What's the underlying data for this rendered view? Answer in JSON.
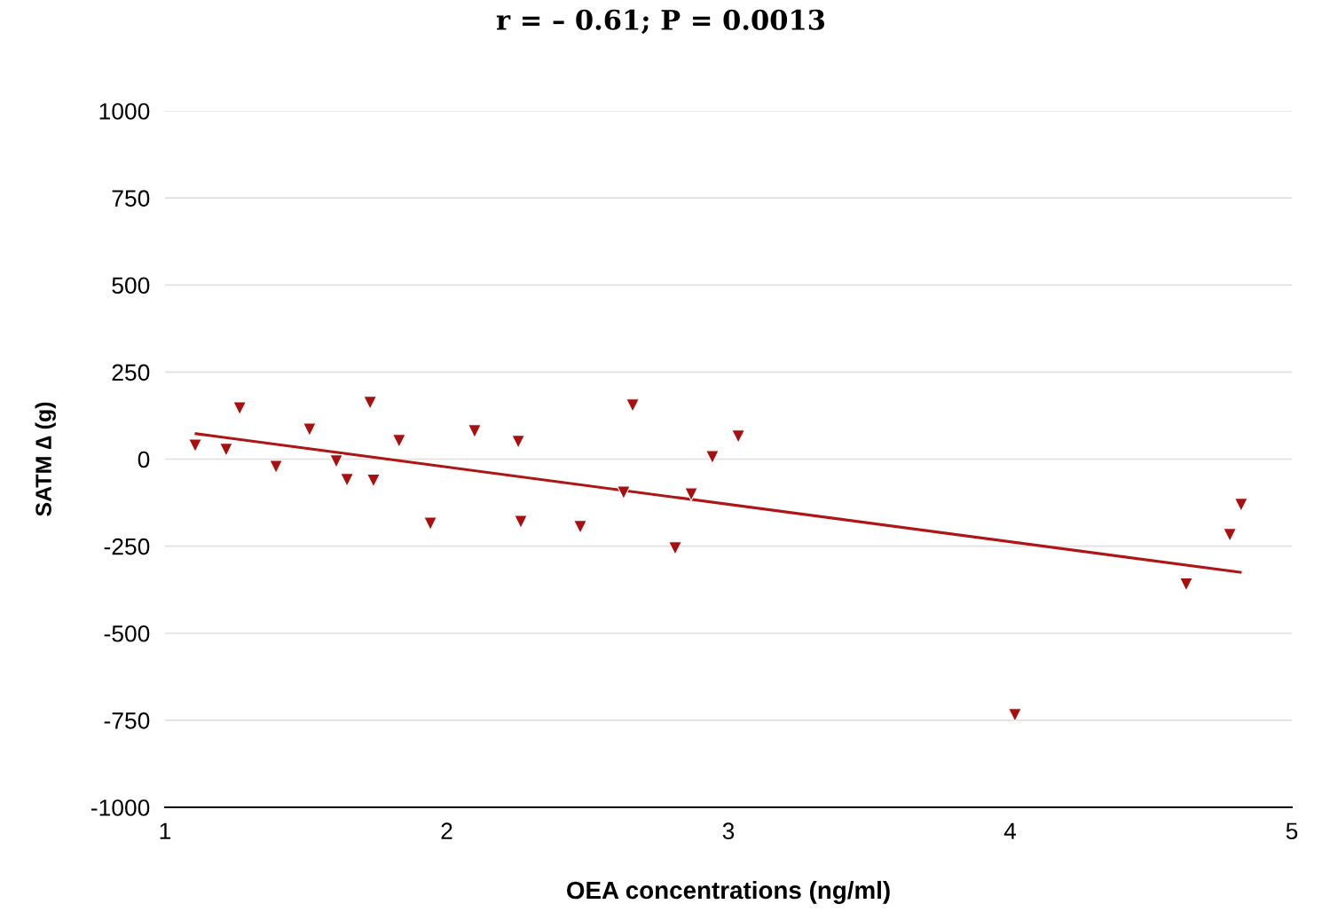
{
  "chart_data": {
    "type": "scatter",
    "title": "r = – 0.61; P = 0.0013",
    "xlabel": "OEA concentrations (ng/ml)",
    "ylabel": "SATM ∆ (g)",
    "xlim": [
      1,
      5
    ],
    "xticks": [
      1,
      2,
      3,
      4,
      5
    ],
    "ylim": [
      -1000,
      1000
    ],
    "yticks": [
      -1000,
      -750,
      -500,
      -250,
      0,
      250,
      500,
      750,
      1000
    ],
    "grid": "y",
    "legend": false,
    "series": [
      {
        "color": "#a81010",
        "marker": "triangle",
        "x": [
          1.107,
          1.217,
          1.265,
          1.394,
          1.513,
          1.608,
          1.646,
          1.728,
          1.74,
          1.831,
          1.942,
          2.099,
          2.254,
          2.263,
          2.474,
          2.628,
          2.66,
          2.811,
          2.868,
          2.943,
          3.035,
          4.017,
          4.625,
          4.78,
          4.82
        ],
        "values": [
          39,
          27,
          146,
          -22,
          85,
          -6,
          -60,
          162,
          -62,
          52,
          -185,
          80,
          50,
          -180,
          -195,
          -96,
          154,
          -256,
          -101,
          6,
          65,
          -735,
          -360,
          -218,
          -131
        ]
      },
      {
        "type": "line",
        "color": "#b01515",
        "marker": "none",
        "x": [
          1.11,
          4.817
        ],
        "values": [
          73,
          -325
        ]
      }
    ]
  }
}
